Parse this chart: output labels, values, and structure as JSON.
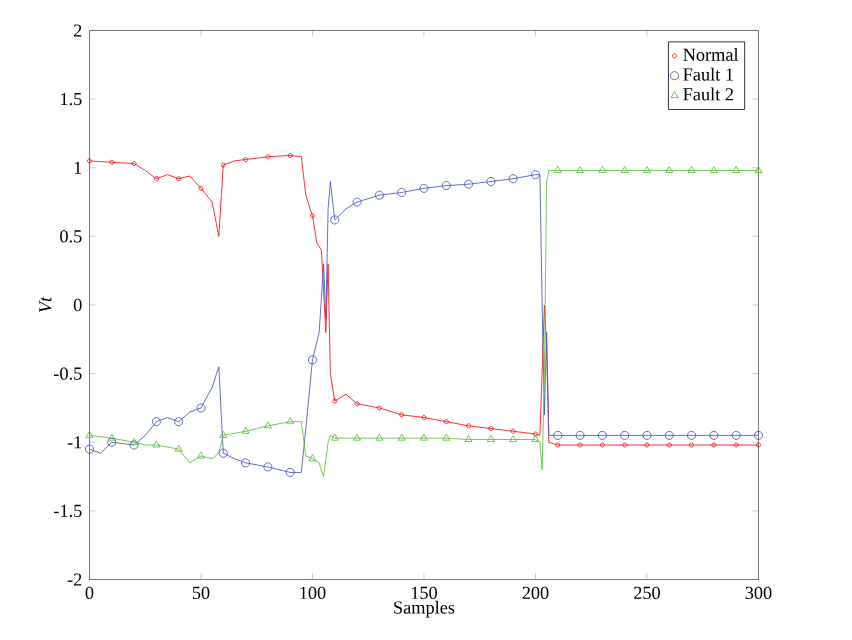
{
  "chart_data": {
    "type": "line",
    "xlabel": "Samples",
    "ylabel": "Vt",
    "xlim": [
      0,
      300
    ],
    "ylim": [
      -2,
      2
    ],
    "xticks": [
      0,
      50,
      100,
      150,
      200,
      250,
      300
    ],
    "yticks": [
      -2,
      -1.5,
      -1,
      -0.5,
      0,
      0.5,
      1,
      1.5,
      2
    ],
    "legend": "top right",
    "grid": false,
    "series": [
      {
        "name": "Normal",
        "color": "#ff0000",
        "marker": "circle",
        "x": [
          0,
          10,
          20,
          25,
          30,
          35,
          40,
          45,
          50,
          55,
          58,
          60,
          65,
          70,
          80,
          90,
          95,
          97,
          100,
          102,
          104,
          105,
          106,
          107,
          108,
          110,
          115,
          120,
          130,
          140,
          150,
          160,
          170,
          180,
          190,
          200,
          202,
          204,
          205,
          206,
          210,
          220,
          230,
          240,
          250,
          260,
          270,
          280,
          290,
          300
        ],
        "values": [
          1.05,
          1.04,
          1.03,
          0.98,
          0.92,
          0.95,
          0.92,
          0.94,
          0.85,
          0.75,
          0.5,
          1.02,
          1.05,
          1.06,
          1.08,
          1.09,
          1.08,
          0.8,
          0.65,
          0.45,
          0.4,
          0.1,
          -0.2,
          0.3,
          -0.5,
          -0.7,
          -0.65,
          -0.72,
          -0.75,
          -0.8,
          -0.82,
          -0.85,
          -0.88,
          -0.9,
          -0.92,
          -0.94,
          -0.95,
          0.0,
          -0.3,
          -1.0,
          -1.02,
          -1.02,
          -1.02,
          -1.02,
          -1.02,
          -1.02,
          -1.02,
          -1.02,
          -1.02,
          -1.02
        ]
      },
      {
        "name": "Fault 1",
        "color": "#3f4fbf",
        "marker": "circle",
        "x": [
          0,
          5,
          10,
          20,
          25,
          30,
          35,
          40,
          45,
          50,
          55,
          58,
          60,
          65,
          70,
          80,
          90,
          95,
          97,
          100,
          103,
          105,
          106,
          107,
          108,
          110,
          115,
          120,
          130,
          140,
          150,
          160,
          170,
          180,
          190,
          200,
          202,
          203,
          204,
          205,
          206,
          210,
          220,
          230,
          240,
          250,
          260,
          270,
          280,
          290,
          300
        ],
        "values": [
          -1.05,
          -1.08,
          -1.0,
          -1.02,
          -0.95,
          -0.85,
          -0.82,
          -0.85,
          -0.78,
          -0.75,
          -0.6,
          -0.45,
          -1.08,
          -1.12,
          -1.15,
          -1.18,
          -1.22,
          -1.22,
          -0.9,
          -0.4,
          -0.2,
          0.3,
          -0.1,
          0.7,
          0.9,
          0.62,
          0.7,
          0.75,
          0.8,
          0.82,
          0.85,
          0.87,
          0.88,
          0.9,
          0.92,
          0.95,
          0.95,
          0.0,
          -0.8,
          -0.2,
          -0.95,
          -0.95,
          -0.95,
          -0.95,
          -0.95,
          -0.95,
          -0.95,
          -0.95,
          -0.95,
          -0.95,
          -0.95
        ]
      },
      {
        "name": "Fault 2",
        "color": "#55bb33",
        "marker": "triangle",
        "x": [
          0,
          10,
          20,
          25,
          30,
          40,
          45,
          50,
          55,
          58,
          60,
          70,
          80,
          90,
          95,
          97,
          100,
          103,
          105,
          107,
          108,
          110,
          120,
          130,
          140,
          150,
          160,
          170,
          180,
          190,
          200,
          202,
          203,
          204,
          205,
          206,
          210,
          220,
          230,
          240,
          250,
          260,
          270,
          280,
          290,
          300
        ],
        "values": [
          -0.95,
          -0.97,
          -1.0,
          -1.02,
          -1.02,
          -1.05,
          -1.15,
          -1.1,
          -1.12,
          -1.08,
          -0.95,
          -0.92,
          -0.88,
          -0.85,
          -0.85,
          -1.1,
          -1.12,
          -1.15,
          -1.25,
          -1.0,
          -0.95,
          -0.97,
          -0.97,
          -0.97,
          -0.97,
          -0.97,
          -0.97,
          -0.98,
          -0.98,
          -0.98,
          -0.98,
          -1.0,
          -1.2,
          -0.5,
          0.9,
          0.98,
          0.98,
          0.98,
          0.98,
          0.98,
          0.98,
          0.98,
          0.98,
          0.98,
          0.98,
          0.98
        ]
      }
    ]
  }
}
